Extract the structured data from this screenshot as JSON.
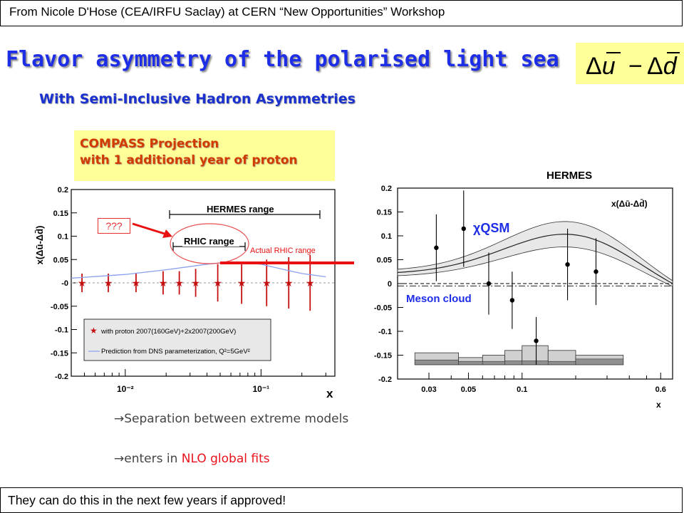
{
  "header": {
    "source": "From Nicole D'Hose (CEA/IRFU Saclay) at CERN “New Opportunities” Workshop"
  },
  "slide": {
    "title": "Flavor asymmetry of the polarised light sea",
    "formula_main": "Δu",
    "formula_sep": " − ",
    "formula_d": "Δd",
    "subtitle": "With Semi-Inclusive Hadron Asymmetries",
    "compass_line1": "COMPASS Projection",
    "compass_line2": "with 1 additional year of proton",
    "hermes_label": "HERMES",
    "qqq": "???",
    "actual_rhic": "Actual RHIC range",
    "bullet1": "Separation between extreme models",
    "bullet2_a": "enters in ",
    "bullet2_b": "NLO global fits"
  },
  "footer": {
    "text": "They can do this in the next few years if approved!"
  },
  "chart_data": [
    {
      "type": "scatter",
      "title": "",
      "ylabel": "x(Δū-Δd̄)",
      "xlabel": "x",
      "xscale": "log",
      "xlim": [
        0.004,
        0.35
      ],
      "ylim": [
        -0.2,
        0.2
      ],
      "yticks": [
        "0.2",
        "0.15",
        "0.1",
        "0.05",
        "-0",
        "-0.05",
        "-0.1",
        "-0.15",
        "-0.2"
      ],
      "xticks": [
        "10⁻²",
        "10⁻¹"
      ],
      "annotations": [
        "HERMES range",
        "RHIC range"
      ],
      "legend": [
        "with proton 2007(160GeV)+2x2007(200GeV)",
        "Prediction from DNS parameterization, Q²=5GeV²"
      ],
      "series": [
        {
          "name": "with proton 2007(160GeV)+2x2007(200GeV)",
          "x": [
            0.0048,
            0.0075,
            0.012,
            0.019,
            0.025,
            0.033,
            0.048,
            0.072,
            0.11,
            0.16,
            0.23
          ],
          "y": [
            0,
            0,
            0,
            0,
            0,
            0,
            0,
            0,
            0,
            0,
            0
          ],
          "err": [
            0.02,
            0.02,
            0.02,
            0.025,
            0.025,
            0.03,
            0.04,
            0.045,
            0.05,
            0.055,
            0.06
          ]
        },
        {
          "name": "Prediction from DNS parameterization, Q²=5GeV²",
          "x": [
            0.004,
            0.01,
            0.02,
            0.04,
            0.06,
            0.1,
            0.15,
            0.2,
            0.3
          ],
          "y": [
            0.01,
            0.018,
            0.028,
            0.04,
            0.045,
            0.04,
            0.028,
            0.02,
            0.013
          ]
        }
      ]
    },
    {
      "type": "scatter",
      "title": "HERMES",
      "ylabel": "x(Δū-Δd̄)",
      "xlabel": "x",
      "xscale": "log",
      "xlim": [
        0.02,
        0.7
      ],
      "ylim": [
        -0.2,
        0.2
      ],
      "yticks": [
        "0.2",
        "0.15",
        "0.1",
        "0.05",
        "0",
        "-0.05",
        "-0.1",
        "-0.15",
        "-0.2"
      ],
      "xticks": [
        "0.03",
        "0.05",
        "0.1",
        "0.6"
      ],
      "annotations": [
        "χQSM",
        "Meson cloud"
      ],
      "series": [
        {
          "name": "",
          "x": [
            0.033,
            0.047,
            0.065,
            0.088,
            0.12,
            0.18,
            0.26
          ],
          "y": [
            0.075,
            0.115,
            0.0,
            -0.035,
            -0.12,
            0.04,
            0.025
          ],
          "err": [
            0.07,
            0.08,
            0.065,
            0.06,
            0.05,
            0.075,
            0.07
          ]
        }
      ]
    }
  ]
}
